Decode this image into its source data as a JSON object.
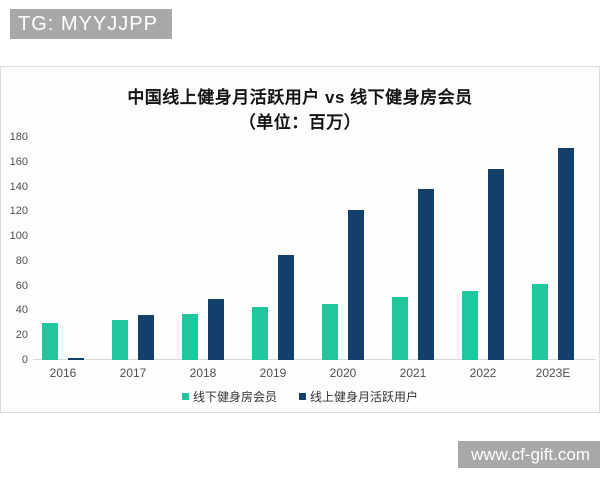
{
  "watermarks": {
    "tg_badge": "TG: MYYJJPP",
    "site_badge": "www.cf-gift.com",
    "badge_bg": "#a8a8a8",
    "badge_text_color": "#ffffff"
  },
  "chart_data": {
    "type": "bar",
    "title": "中国线上健身月活跃用户 vs 线下健身房会员",
    "subtitle": "（单位：百万）",
    "unit": "百万",
    "categories": [
      "2016",
      "2017",
      "2018",
      "2019",
      "2020",
      "2021",
      "2022",
      "2023E"
    ],
    "series": [
      {
        "name": "线下健身房会员",
        "color": "#1fc79c",
        "values": [
          30,
          32,
          37,
          43,
          45,
          51,
          56,
          61
        ]
      },
      {
        "name": "线上健身月活跃用户",
        "color": "#133f6b",
        "values": [
          2,
          36,
          49,
          85,
          121,
          138,
          154,
          171
        ]
      }
    ],
    "ylim": [
      0,
      180
    ],
    "yticks": [
      0,
      20,
      40,
      60,
      80,
      100,
      120,
      140,
      160,
      180
    ],
    "grid": false,
    "legend_position": "bottom",
    "axis_line_color": "#d9d9d9"
  }
}
